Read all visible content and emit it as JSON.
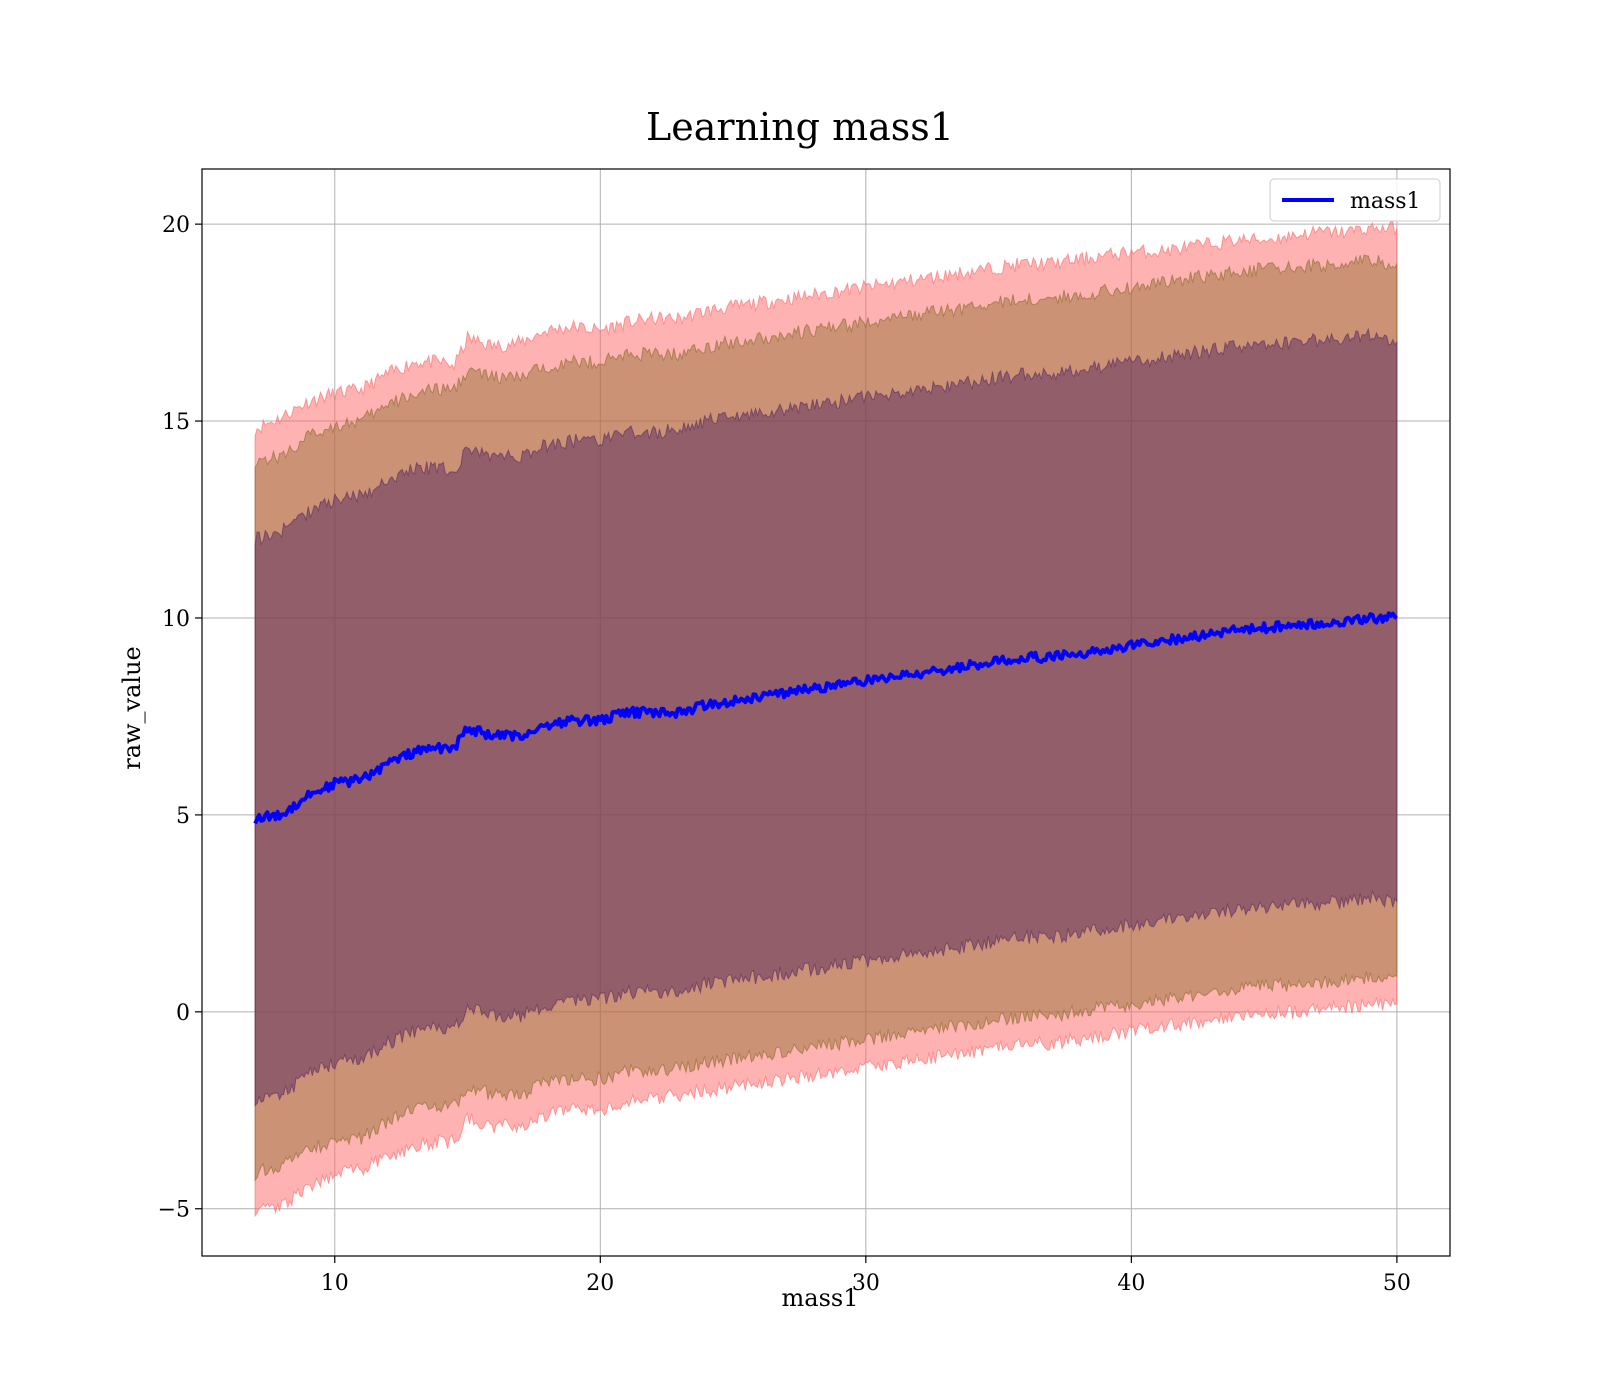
{
  "chart_data": {
    "type": "line",
    "title": "Learning mass1",
    "xlabel": "mass1",
    "ylabel": "raw_value",
    "xlim": [
      5,
      52
    ],
    "ylim": [
      -6.2,
      21.4
    ],
    "xticks": [
      10,
      20,
      30,
      40,
      50
    ],
    "yticks": [
      -5,
      0,
      5,
      10,
      15,
      20
    ],
    "xtick_labels": [
      "10",
      "20",
      "30",
      "40",
      "50"
    ],
    "ytick_labels": [
      "−5",
      "0",
      "5",
      "10",
      "15",
      "20"
    ],
    "grid": true,
    "legend": {
      "placement": "top-right",
      "entries": [
        {
          "name": "mass1",
          "color": "#0000ff"
        }
      ]
    },
    "x": [
      7,
      8,
      9,
      10,
      11,
      12,
      13,
      14,
      14.5,
      15,
      16,
      17,
      18,
      19,
      20,
      21,
      22,
      23,
      24,
      25,
      26,
      27,
      28,
      29,
      30,
      31,
      32,
      33,
      34,
      35,
      36,
      37,
      38,
      39,
      40,
      41,
      42,
      43,
      44,
      45,
      46,
      47,
      48,
      49,
      50
    ],
    "series": [
      {
        "name": "mass1",
        "color": "#0000ff",
        "values": [
          4.9,
          5.0,
          5.5,
          5.8,
          5.9,
          6.3,
          6.6,
          6.7,
          6.7,
          7.2,
          7.0,
          7.0,
          7.3,
          7.4,
          7.4,
          7.6,
          7.6,
          7.6,
          7.8,
          7.9,
          8.0,
          8.1,
          8.2,
          8.3,
          8.4,
          8.5,
          8.6,
          8.7,
          8.8,
          8.9,
          9.0,
          9.0,
          9.1,
          9.2,
          9.3,
          9.4,
          9.5,
          9.6,
          9.7,
          9.75,
          9.8,
          9.85,
          9.9,
          10.0,
          10.0
        ]
      }
    ],
    "bands": [
      {
        "color": "#ff6666",
        "opacity": 0.5,
        "upper": [
          14.8,
          15.1,
          15.5,
          15.7,
          15.8,
          16.2,
          16.5,
          16.5,
          16.4,
          17.1,
          16.9,
          17.0,
          17.3,
          17.4,
          17.3,
          17.5,
          17.6,
          17.6,
          17.8,
          17.9,
          18.0,
          18.1,
          18.2,
          18.3,
          18.4,
          18.5,
          18.6,
          18.7,
          18.8,
          18.9,
          19.0,
          19.0,
          19.1,
          19.2,
          19.3,
          19.3,
          19.4,
          19.5,
          19.6,
          19.6,
          19.7,
          19.8,
          19.8,
          19.9,
          19.9
        ],
        "lower": [
          -5.0,
          -4.9,
          -4.5,
          -4.1,
          -4.0,
          -3.7,
          -3.4,
          -3.3,
          -3.3,
          -2.7,
          -2.9,
          -2.9,
          -2.6,
          -2.5,
          -2.5,
          -2.3,
          -2.2,
          -2.1,
          -2.0,
          -1.9,
          -1.8,
          -1.7,
          -1.6,
          -1.5,
          -1.4,
          -1.3,
          -1.2,
          -1.1,
          -1.0,
          -0.9,
          -0.8,
          -0.8,
          -0.7,
          -0.6,
          -0.5,
          -0.4,
          -0.3,
          -0.2,
          -0.1,
          -0.05,
          0.0,
          0.05,
          0.1,
          0.2,
          0.2
        ]
      },
      {
        "color": "#8b6a2a",
        "opacity": 0.45,
        "upper": [
          14.0,
          14.1,
          14.6,
          14.9,
          15.0,
          15.4,
          15.7,
          15.8,
          15.8,
          16.3,
          16.1,
          16.1,
          16.4,
          16.5,
          16.5,
          16.7,
          16.7,
          16.7,
          16.9,
          17.0,
          17.1,
          17.2,
          17.3,
          17.4,
          17.5,
          17.6,
          17.7,
          17.8,
          17.9,
          18.0,
          18.1,
          18.1,
          18.2,
          18.3,
          18.4,
          18.5,
          18.6,
          18.7,
          18.8,
          18.85,
          18.9,
          18.95,
          19.0,
          19.1,
          19.0
        ],
        "lower": [
          -4.1,
          -3.9,
          -3.5,
          -3.3,
          -3.2,
          -2.8,
          -2.5,
          -2.4,
          -2.4,
          -1.9,
          -2.1,
          -2.1,
          -1.8,
          -1.7,
          -1.7,
          -1.5,
          -1.5,
          -1.4,
          -1.3,
          -1.2,
          -1.1,
          -1.0,
          -0.9,
          -0.8,
          -0.7,
          -0.6,
          -0.5,
          -0.4,
          -0.3,
          -0.2,
          -0.1,
          -0.1,
          0.0,
          0.1,
          0.2,
          0.3,
          0.4,
          0.5,
          0.6,
          0.65,
          0.7,
          0.75,
          0.8,
          0.9,
          0.9
        ]
      },
      {
        "color": "#5a2a60",
        "opacity": 0.5,
        "upper": [
          12.0,
          12.2,
          12.7,
          13.0,
          13.1,
          13.5,
          13.8,
          13.8,
          13.7,
          14.3,
          14.1,
          14.1,
          14.4,
          14.5,
          14.5,
          14.7,
          14.7,
          14.8,
          15.0,
          15.1,
          15.2,
          15.3,
          15.4,
          15.5,
          15.6,
          15.7,
          15.8,
          15.9,
          16.0,
          16.1,
          16.2,
          16.2,
          16.3,
          16.4,
          16.5,
          16.6,
          16.7,
          16.8,
          16.9,
          16.95,
          17.0,
          17.05,
          17.1,
          17.2,
          17.0
        ],
        "lower": [
          -2.2,
          -2.1,
          -1.6,
          -1.3,
          -1.2,
          -0.8,
          -0.5,
          -0.4,
          -0.4,
          0.1,
          -0.1,
          -0.1,
          0.2,
          0.3,
          0.3,
          0.5,
          0.5,
          0.5,
          0.7,
          0.8,
          0.9,
          1.0,
          1.1,
          1.2,
          1.3,
          1.4,
          1.5,
          1.6,
          1.7,
          1.8,
          1.9,
          1.9,
          2.0,
          2.1,
          2.2,
          2.3,
          2.4,
          2.5,
          2.6,
          2.65,
          2.7,
          2.75,
          2.8,
          2.9,
          2.8
        ]
      }
    ]
  }
}
